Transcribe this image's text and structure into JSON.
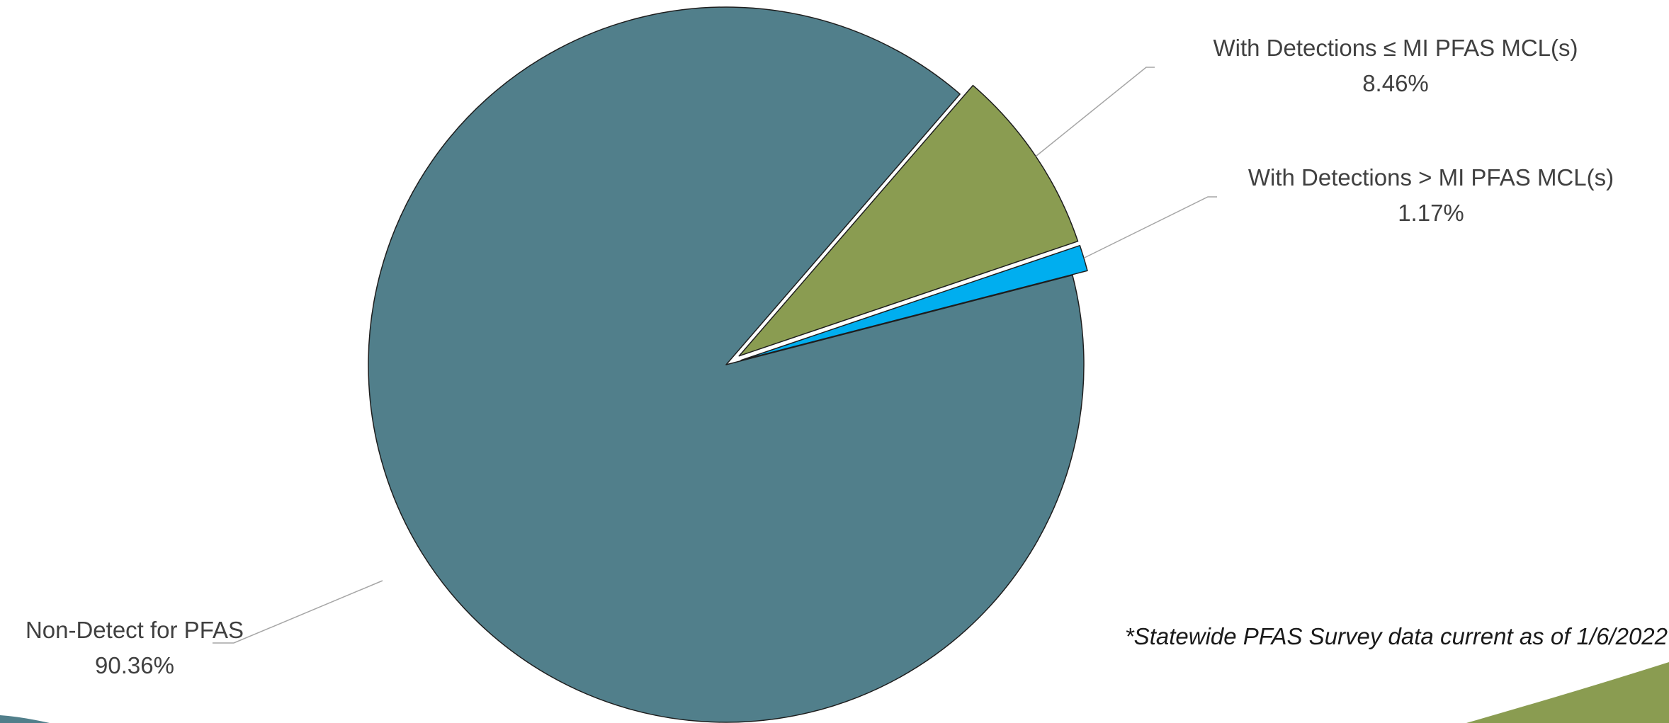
{
  "chart_data": {
    "type": "pie",
    "title": "",
    "slices": [
      {
        "label": "Non-Detect for PFAS",
        "value": 90.36,
        "display": "90.36%",
        "color": "#517f8b"
      },
      {
        "label": "With Detections ≤ MI PFAS MCL(s)",
        "value": 8.46,
        "display": "8.46%",
        "color": "#8a9c51"
      },
      {
        "label": "With Detections > MI PFAS MCL(s)",
        "value": 1.17,
        "display": "1.17%",
        "color": "#00aeef"
      }
    ],
    "note": "*Statewide PFAS Survey data current as of 1/6/2022",
    "legend": "none (data labels with leader lines)"
  },
  "decor": {
    "left_accent": "#517f8b",
    "right_accent": "#8a9c51"
  }
}
